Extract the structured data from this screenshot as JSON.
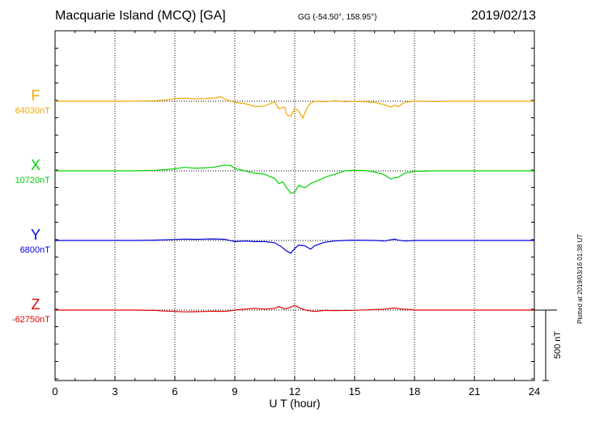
{
  "header": {
    "title": "Macquarie Island (MCQ)  [GA]",
    "coords": "GG (-54.50°, 158.95°)",
    "date": "2019/02/13"
  },
  "footer": {
    "plotted": "Plotted at 2019/03/16 01:38 UT"
  },
  "chart_data": {
    "type": "line",
    "title": "Macquarie Island (MCQ)  [GA]",
    "xlabel": "U T (hour)",
    "ylabel": "",
    "xlim": [
      0,
      24
    ],
    "xticks": [
      "0",
      "3",
      "6",
      "9",
      "12",
      "15",
      "18",
      "21",
      "24"
    ],
    "grid": true,
    "scale_bar": "500 nT",
    "series": [
      {
        "name": "F",
        "baseline_label": "64030nT",
        "color": "#f0a800",
        "points": [
          [
            0,
            0
          ],
          [
            1,
            0
          ],
          [
            2,
            0
          ],
          [
            3,
            0
          ],
          [
            4,
            0
          ],
          [
            5,
            5
          ],
          [
            5.5,
            10
          ],
          [
            6,
            22
          ],
          [
            6.5,
            28
          ],
          [
            7,
            20
          ],
          [
            7.5,
            23
          ],
          [
            8,
            28
          ],
          [
            8.3,
            38
          ],
          [
            8.5,
            18
          ],
          [
            9,
            -10
          ],
          [
            9.5,
            -20
          ],
          [
            10,
            -45
          ],
          [
            10.5,
            -40
          ],
          [
            11,
            -5
          ],
          [
            11.2,
            -65
          ],
          [
            11.5,
            -50
          ],
          [
            11.6,
            -115
          ],
          [
            11.8,
            -130
          ],
          [
            12,
            -60
          ],
          [
            12.2,
            -85
          ],
          [
            12.4,
            -145
          ],
          [
            12.6,
            -65
          ],
          [
            12.8,
            -15
          ],
          [
            13,
            0
          ],
          [
            13.5,
            -5
          ],
          [
            14,
            5
          ],
          [
            14.5,
            -5
          ],
          [
            15,
            0
          ],
          [
            16,
            -10
          ],
          [
            16.5,
            -30
          ],
          [
            16.8,
            -50
          ],
          [
            17,
            -35
          ],
          [
            17.2,
            -45
          ],
          [
            17.5,
            -10
          ],
          [
            18,
            0
          ],
          [
            19,
            -3
          ],
          [
            20,
            0
          ],
          [
            21,
            0
          ],
          [
            22,
            0
          ],
          [
            23,
            0
          ],
          [
            24,
            0
          ]
        ]
      },
      {
        "name": "X",
        "baseline_label": "10720nT",
        "color": "#00d000",
        "points": [
          [
            0,
            0
          ],
          [
            1,
            0
          ],
          [
            2,
            0
          ],
          [
            3,
            0
          ],
          [
            4,
            0
          ],
          [
            5,
            5
          ],
          [
            5.5,
            10
          ],
          [
            6,
            18
          ],
          [
            6.5,
            30
          ],
          [
            7,
            22
          ],
          [
            7.5,
            25
          ],
          [
            8,
            32
          ],
          [
            8.5,
            50
          ],
          [
            8.8,
            45
          ],
          [
            9,
            20
          ],
          [
            9.5,
            0
          ],
          [
            10,
            -20
          ],
          [
            10.5,
            -30
          ],
          [
            11,
            -65
          ],
          [
            11.2,
            -110
          ],
          [
            11.4,
            -95
          ],
          [
            11.6,
            -145
          ],
          [
            11.8,
            -190
          ],
          [
            12,
            -185
          ],
          [
            12.2,
            -125
          ],
          [
            12.5,
            -145
          ],
          [
            12.8,
            -110
          ],
          [
            13.2,
            -80
          ],
          [
            13.6,
            -50
          ],
          [
            14,
            -30
          ],
          [
            14.5,
            0
          ],
          [
            15,
            5
          ],
          [
            15.5,
            3
          ],
          [
            16,
            -10
          ],
          [
            16.5,
            -35
          ],
          [
            16.8,
            -70
          ],
          [
            17,
            -60
          ],
          [
            17.2,
            -55
          ],
          [
            17.5,
            -20
          ],
          [
            18,
            -5
          ],
          [
            19,
            0
          ],
          [
            20,
            0
          ],
          [
            21,
            0
          ],
          [
            22,
            0
          ],
          [
            23,
            0
          ],
          [
            24,
            0
          ]
        ]
      },
      {
        "name": "Y",
        "baseline_label": "6800nT",
        "color": "#0000e0",
        "points": [
          [
            0,
            0
          ],
          [
            1,
            0
          ],
          [
            2,
            0
          ],
          [
            3,
            0
          ],
          [
            4,
            0
          ],
          [
            5,
            3
          ],
          [
            6,
            8
          ],
          [
            6.5,
            12
          ],
          [
            7,
            10
          ],
          [
            7.5,
            12
          ],
          [
            8,
            13
          ],
          [
            8.5,
            10
          ],
          [
            9,
            -10
          ],
          [
            9.5,
            -5
          ],
          [
            10,
            -10
          ],
          [
            10.5,
            -10
          ],
          [
            11,
            -20
          ],
          [
            11.3,
            -50
          ],
          [
            11.6,
            -90
          ],
          [
            11.8,
            -110
          ],
          [
            12,
            -70
          ],
          [
            12.2,
            -40
          ],
          [
            12.5,
            -45
          ],
          [
            12.8,
            -75
          ],
          [
            13,
            -45
          ],
          [
            13.5,
            -15
          ],
          [
            14,
            -5
          ],
          [
            14.5,
            0
          ],
          [
            15,
            3
          ],
          [
            16,
            0
          ],
          [
            16.5,
            -5
          ],
          [
            17,
            12
          ],
          [
            17.2,
            2
          ],
          [
            17.5,
            -5
          ],
          [
            18,
            0
          ],
          [
            19,
            0
          ],
          [
            20,
            0
          ],
          [
            21,
            0
          ],
          [
            22,
            0
          ],
          [
            23,
            0
          ],
          [
            24,
            0
          ]
        ]
      },
      {
        "name": "Z",
        "baseline_label": "-62750nT",
        "color": "#e00000",
        "points": [
          [
            0,
            0
          ],
          [
            1,
            0
          ],
          [
            2,
            0
          ],
          [
            3,
            0
          ],
          [
            4,
            0
          ],
          [
            5,
            -3
          ],
          [
            5.5,
            -8
          ],
          [
            6,
            -12
          ],
          [
            6.5,
            -15
          ],
          [
            7,
            -14
          ],
          [
            7.5,
            -12
          ],
          [
            8,
            -10
          ],
          [
            8.5,
            -12
          ],
          [
            9,
            0
          ],
          [
            9.5,
            8
          ],
          [
            10,
            15
          ],
          [
            10.5,
            8
          ],
          [
            11,
            15
          ],
          [
            11.2,
            30
          ],
          [
            11.5,
            10
          ],
          [
            11.8,
            25
          ],
          [
            12,
            40
          ],
          [
            12.3,
            15
          ],
          [
            12.6,
            -3
          ],
          [
            13,
            -12
          ],
          [
            13.5,
            -3
          ],
          [
            14,
            -5
          ],
          [
            15,
            -2
          ],
          [
            16,
            5
          ],
          [
            16.5,
            8
          ],
          [
            17,
            18
          ],
          [
            17.3,
            10
          ],
          [
            17.8,
            5
          ],
          [
            18,
            0
          ],
          [
            19,
            0
          ],
          [
            20,
            0
          ],
          [
            21,
            0
          ],
          [
            22,
            0
          ],
          [
            23,
            0
          ],
          [
            24,
            0
          ]
        ]
      }
    ]
  }
}
